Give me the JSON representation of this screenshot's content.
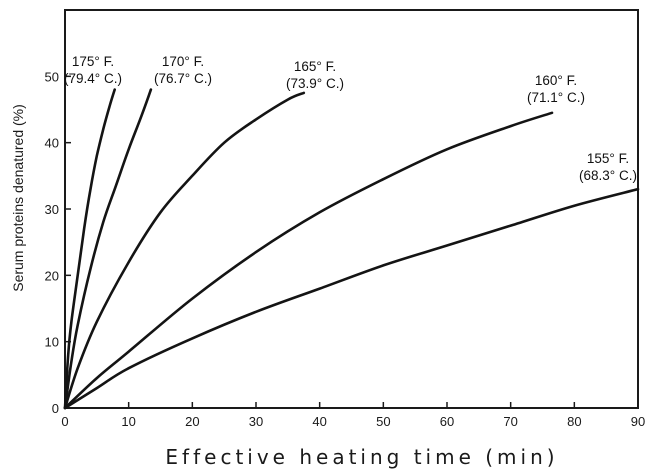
{
  "chart_data": {
    "type": "line",
    "xlabel": "Effective heating time (min)",
    "ylabel": "Serum proteins denatured (%)",
    "xlim": [
      0,
      90
    ],
    "ylim": [
      0,
      60
    ],
    "x_ticks": [
      0,
      10,
      20,
      30,
      40,
      50,
      60,
      70,
      80,
      90
    ],
    "y_ticks": [
      0,
      10,
      20,
      30,
      40,
      50
    ],
    "grid": false,
    "series": [
      {
        "name": "175° F. (79.4° C.)",
        "label_line1": "175° F.",
        "label_line2": "(79.4° C.)",
        "x": [
          0,
          0.5,
          1,
          2,
          3,
          4,
          5,
          6,
          7,
          7.8
        ],
        "y": [
          0,
          8,
          13,
          20,
          27,
          33,
          38,
          42,
          45.5,
          48
        ]
      },
      {
        "name": "170° F. (76.7° C.)",
        "label_line1": "170° F.",
        "label_line2": "(76.7° C.)",
        "x": [
          0,
          1,
          2,
          4,
          6,
          8,
          10,
          12,
          13.5
        ],
        "y": [
          0,
          7,
          12.5,
          21,
          28,
          33.5,
          39,
          44,
          48
        ]
      },
      {
        "name": "165° F. (73.9° C.)",
        "label_line1": "165° F.",
        "label_line2": "(73.9° C.)",
        "x": [
          0,
          2,
          5,
          10,
          15,
          20,
          25,
          30,
          35,
          37.5
        ],
        "y": [
          0,
          6,
          13,
          22,
          29.5,
          35,
          40,
          43.5,
          46.5,
          47.5
        ]
      },
      {
        "name": "160° F. (71.1° C.)",
        "label_line1": "160° F.",
        "label_line2": "(71.1° C.)",
        "x": [
          0,
          5,
          10,
          20,
          30,
          40,
          50,
          60,
          70,
          76.5
        ],
        "y": [
          0,
          4.5,
          8.5,
          16.5,
          23.5,
          29.5,
          34.5,
          39,
          42.5,
          44.5
        ]
      },
      {
        "name": "155° F. (68.3° C.)",
        "label_line1": "155° F.",
        "label_line2": "(68.3° C.)",
        "x": [
          0,
          5,
          10,
          20,
          30,
          40,
          50,
          60,
          70,
          80,
          90
        ],
        "y": [
          0,
          3,
          6,
          10.5,
          14.5,
          18,
          21.5,
          24.5,
          27.5,
          30.5,
          33
        ]
      }
    ]
  }
}
